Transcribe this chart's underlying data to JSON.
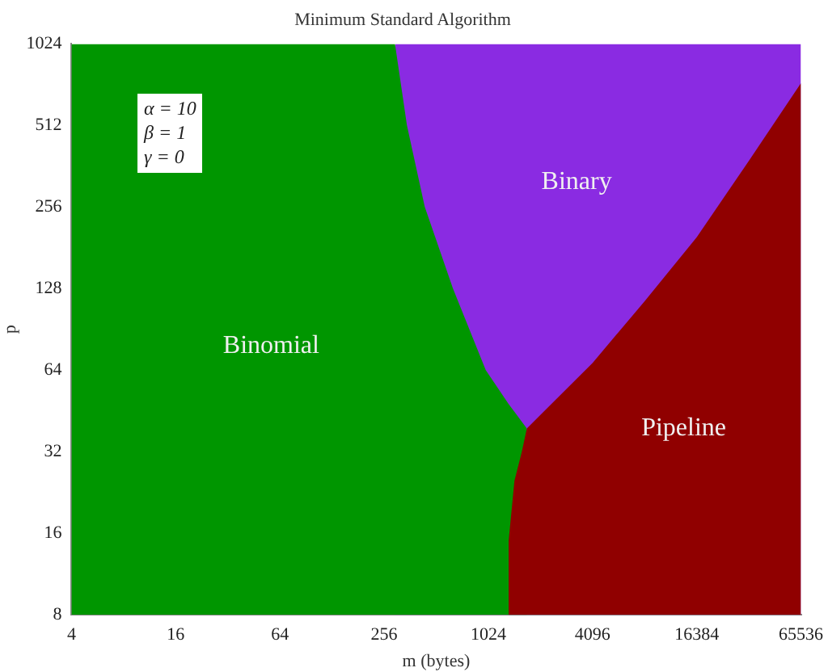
{
  "chart_data": {
    "type": "area",
    "title": "Minimum Standard Algorithm",
    "xlabel": "m (bytes)",
    "ylabel": "p",
    "log": "xy",
    "grid": false,
    "legend": false,
    "xlim": [
      4,
      65536
    ],
    "xticks": [
      4,
      16,
      64,
      256,
      1024,
      4096,
      16384,
      65536
    ],
    "ylim": [
      8,
      1024
    ],
    "yticks": [
      8,
      16,
      32,
      64,
      128,
      256,
      512,
      1024
    ],
    "annotations": [
      "α = 10",
      "β = 1",
      "γ = 0"
    ],
    "series": [
      {
        "name": "Binary",
        "color": "#8a2be2",
        "x": [
          296,
          65536
        ],
        "values": [
          1024,
          1024
        ]
      },
      {
        "name": "Binomial",
        "color": "#009600",
        "x": [
          4,
          296,
          347,
          440,
          640,
          990,
          1342,
          1710
        ],
        "values": [
          1024,
          1024,
          512,
          256,
          128,
          64,
          48,
          39
        ]
      },
      {
        "name": "Pipeline",
        "color": "#900000",
        "x": [
          1342,
          1450,
          1600,
          1710,
          4096,
          8192,
          16384,
          32768,
          65536
        ],
        "values": [
          15,
          25,
          32,
          39,
          68,
          115,
          198,
          379,
          734
        ]
      }
    ]
  }
}
